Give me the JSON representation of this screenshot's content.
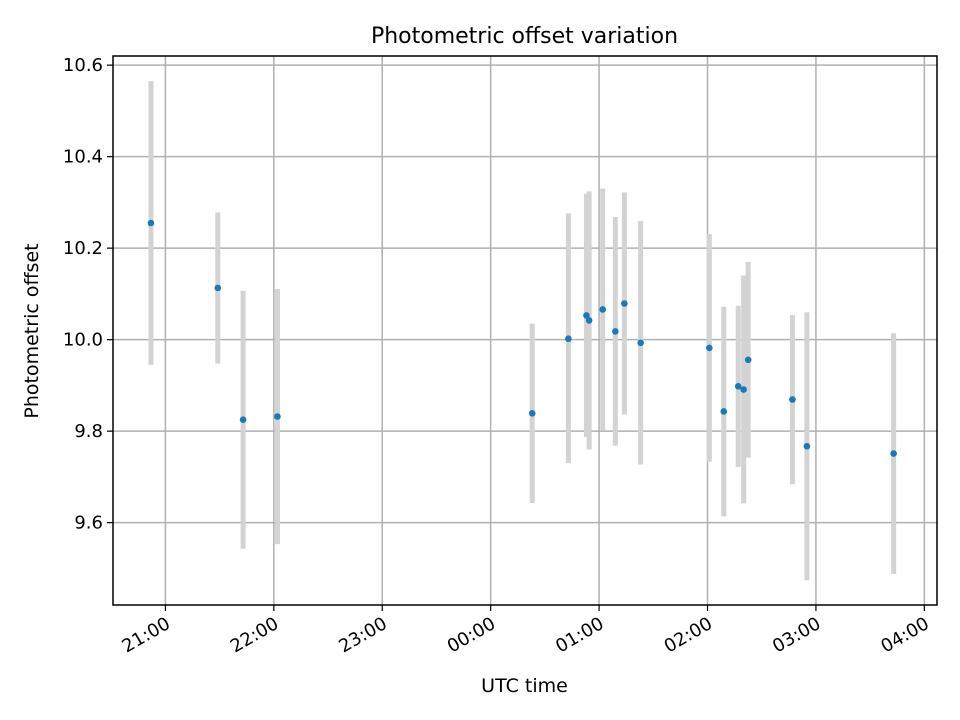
{
  "chart_data": {
    "type": "scatter",
    "title": "Photometric offset variation",
    "xlabel": "UTC time",
    "ylabel": "Photometric offset",
    "x_axis_type": "time",
    "x_range": [
      "2000-01-01T20:31:00",
      "2000-01-02T04:07:00"
    ],
    "y_range": [
      9.42,
      10.62
    ],
    "x_ticks": [
      {
        "t": "2000-01-01T21:00:00",
        "label": "21:00"
      },
      {
        "t": "2000-01-01T22:00:00",
        "label": "22:00"
      },
      {
        "t": "2000-01-01T23:00:00",
        "label": "23:00"
      },
      {
        "t": "2000-01-02T00:00:00",
        "label": "00:00"
      },
      {
        "t": "2000-01-02T01:00:00",
        "label": "01:00"
      },
      {
        "t": "2000-01-02T02:00:00",
        "label": "02:00"
      },
      {
        "t": "2000-01-02T03:00:00",
        "label": "03:00"
      },
      {
        "t": "2000-01-02T04:00:00",
        "label": "04:00"
      }
    ],
    "y_ticks": [
      {
        "v": 9.6,
        "label": "9.6"
      },
      {
        "v": 9.8,
        "label": "9.8"
      },
      {
        "v": 10.0,
        "label": "10.0"
      },
      {
        "v": 10.2,
        "label": "10.2"
      },
      {
        "v": 10.4,
        "label": "10.4"
      },
      {
        "v": 10.6,
        "label": "10.6"
      }
    ],
    "grid": true,
    "marker_color": "#1f77b4",
    "errorbar_color": "#d3d3d3",
    "points": [
      {
        "t": "2000-01-01T20:52:00",
        "y": 10.255,
        "low": 9.945,
        "high": 10.565
      },
      {
        "t": "2000-01-01T21:29:00",
        "y": 10.113,
        "low": 9.948,
        "high": 10.278
      },
      {
        "t": "2000-01-01T21:43:00",
        "y": 9.825,
        "low": 9.543,
        "high": 10.107
      },
      {
        "t": "2000-01-01T22:02:00",
        "y": 9.832,
        "low": 9.553,
        "high": 10.111
      },
      {
        "t": "2000-01-02T00:23:00",
        "y": 9.839,
        "low": 9.643,
        "high": 10.035
      },
      {
        "t": "2000-01-02T00:43:00",
        "y": 10.002,
        "low": 9.73,
        "high": 10.276
      },
      {
        "t": "2000-01-02T00:53:00",
        "y": 10.053,
        "low": 9.787,
        "high": 10.319
      },
      {
        "t": "2000-01-02T00:54:30",
        "y": 10.042,
        "low": 9.76,
        "high": 10.324
      },
      {
        "t": "2000-01-02T01:02:00",
        "y": 10.066,
        "low": 9.802,
        "high": 10.33
      },
      {
        "t": "2000-01-02T01:09:00",
        "y": 10.018,
        "low": 9.768,
        "high": 10.268
      },
      {
        "t": "2000-01-02T01:14:00",
        "y": 10.079,
        "low": 9.836,
        "high": 10.322
      },
      {
        "t": "2000-01-02T01:23:00",
        "y": 9.993,
        "low": 9.727,
        "high": 10.259
      },
      {
        "t": "2000-01-02T02:01:00",
        "y": 9.982,
        "low": 9.733,
        "high": 10.231
      },
      {
        "t": "2000-01-02T02:09:00",
        "y": 9.843,
        "low": 9.614,
        "high": 10.072
      },
      {
        "t": "2000-01-02T02:17:00",
        "y": 9.898,
        "low": 9.722,
        "high": 10.074
      },
      {
        "t": "2000-01-02T02:20:00",
        "y": 9.891,
        "low": 9.642,
        "high": 10.14
      },
      {
        "t": "2000-01-02T02:22:30",
        "y": 9.956,
        "low": 9.742,
        "high": 10.17
      },
      {
        "t": "2000-01-02T02:47:00",
        "y": 9.869,
        "low": 9.684,
        "high": 10.054
      },
      {
        "t": "2000-01-02T02:55:00",
        "y": 9.767,
        "low": 9.474,
        "high": 10.06
      },
      {
        "t": "2000-01-02T03:43:00",
        "y": 9.751,
        "low": 9.488,
        "high": 10.014
      }
    ]
  }
}
